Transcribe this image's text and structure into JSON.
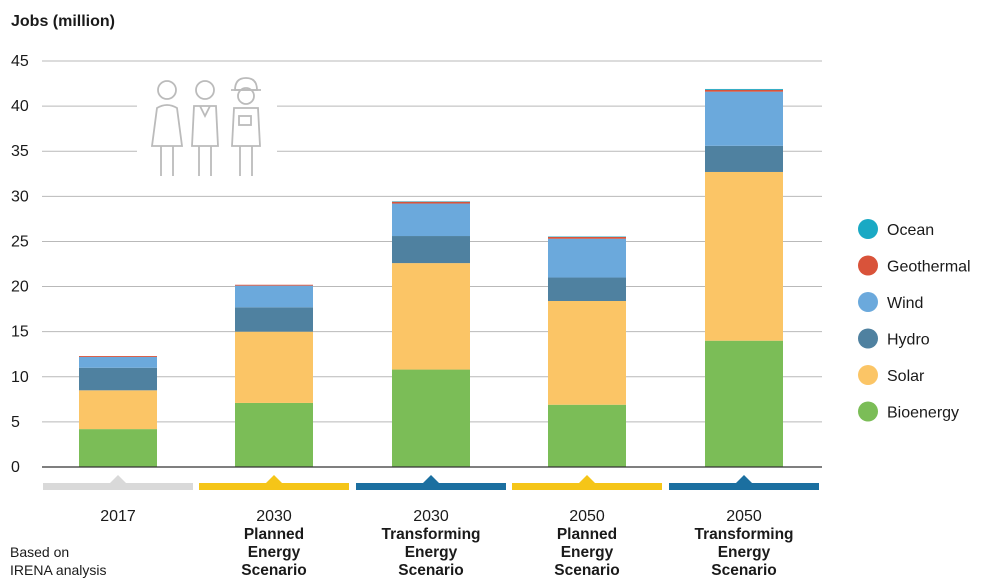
{
  "chart_data": {
    "type": "bar",
    "stacked": true,
    "ylabel": "Jobs (million)",
    "ylim": [
      0,
      45
    ],
    "yticks": [
      0,
      5,
      10,
      15,
      20,
      25,
      30,
      35,
      40,
      45
    ],
    "grid": true,
    "legend_position": "right",
    "categories": [
      {
        "year": "2017",
        "scenario": []
      },
      {
        "year": "2030",
        "scenario": [
          "Planned",
          "Energy",
          "Scenario"
        ]
      },
      {
        "year": "2030",
        "scenario": [
          "Transforming",
          "Energy",
          "Scenario"
        ]
      },
      {
        "year": "2050",
        "scenario": [
          "Planned",
          "Energy",
          "Scenario"
        ]
      },
      {
        "year": "2050",
        "scenario": [
          "Transforming",
          "Energy",
          "Scenario"
        ]
      }
    ],
    "category_band_colors": [
      "#d9d9d9",
      "#f5c518",
      "#1b6fa0",
      "#f5c518",
      "#1b6fa0"
    ],
    "series": [
      {
        "name": "Bioenergy",
        "color": "#7bbd57",
        "values": [
          4.2,
          7.1,
          10.8,
          6.9,
          14.0
        ]
      },
      {
        "name": "Solar",
        "color": "#fbc566",
        "values": [
          4.3,
          7.9,
          11.8,
          11.5,
          18.7
        ]
      },
      {
        "name": "Hydro",
        "color": "#4f81a0",
        "values": [
          2.5,
          2.7,
          3.0,
          2.6,
          2.9
        ]
      },
      {
        "name": "Wind",
        "color": "#6ba9dc",
        "values": [
          1.2,
          2.4,
          3.6,
          4.3,
          6.0
        ]
      },
      {
        "name": "Geothermal",
        "color": "#d9533a",
        "values": [
          0.1,
          0.1,
          0.2,
          0.2,
          0.2
        ]
      },
      {
        "name": "Ocean",
        "color": "#1aa9c4",
        "values": [
          0.0,
          0.0,
          0.05,
          0.05,
          0.1
        ]
      }
    ],
    "legend_order": [
      "Ocean",
      "Geothermal",
      "Wind",
      "Hydro",
      "Solar",
      "Bioenergy"
    ]
  },
  "icon": "people-workers-icon",
  "source_note": [
    "Based on",
    "IRENA analysis"
  ]
}
